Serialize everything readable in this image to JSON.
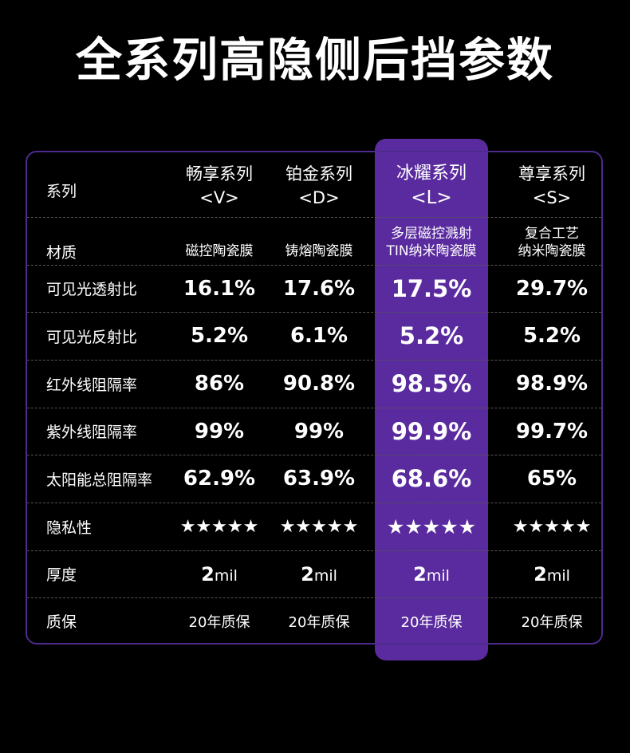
{
  "title": "全系列高隐侧后挡参数",
  "columns": [
    {
      "name": "畅享系列",
      "code": "<V>"
    },
    {
      "name": "铂金系列",
      "code": "<D>"
    },
    {
      "name": "冰耀系列",
      "code": "<L>"
    },
    {
      "name": "尊享系列",
      "code": "<S>"
    }
  ],
  "header_label": "系列",
  "rows": [
    {
      "label": "材质",
      "values": [
        [
          "磁控陶瓷膜"
        ],
        [
          "铸熔陶瓷膜"
        ],
        [
          "多层磁控溅射",
          "TIN纳米陶瓷膜"
        ],
        [
          "复合工艺",
          "纳米陶瓷膜"
        ]
      ]
    },
    {
      "label": "可见光透射比",
      "values": [
        "16.1%",
        "17.6%",
        "17.5%",
        "29.7%"
      ]
    },
    {
      "label": "可见光反射比",
      "values": [
        "5.2%",
        "6.1%",
        "5.2%",
        "5.2%"
      ]
    },
    {
      "label": "红外线阻隔率",
      "values": [
        "86%",
        "90.8%",
        "98.5%",
        "98.9%"
      ]
    },
    {
      "label": "紫外线阻隔率",
      "values": [
        "99%",
        "99%",
        "99.9%",
        "99.7%"
      ]
    },
    {
      "label": "太阳能总阻隔率",
      "values": [
        "62.9%",
        "63.9%",
        "68.6%",
        "65%"
      ]
    },
    {
      "label": "隐私性",
      "values": [
        "★★★★★",
        "★★★★★",
        "★★★★★",
        "★★★★★"
      ]
    },
    {
      "label": "厚度",
      "values": [
        {
          "num": "2",
          "unit": "mil"
        },
        {
          "num": "2",
          "unit": "mil"
        },
        {
          "num": "2",
          "unit": "mil"
        },
        {
          "num": "2",
          "unit": "mil"
        }
      ]
    },
    {
      "label": "质保",
      "values": [
        "20年质保",
        "20年质保",
        "20年质保",
        "20年质保"
      ]
    }
  ],
  "colors": {
    "background": "#000000",
    "highlight": "#5a2b9e",
    "border": "#4e2a8c"
  }
}
